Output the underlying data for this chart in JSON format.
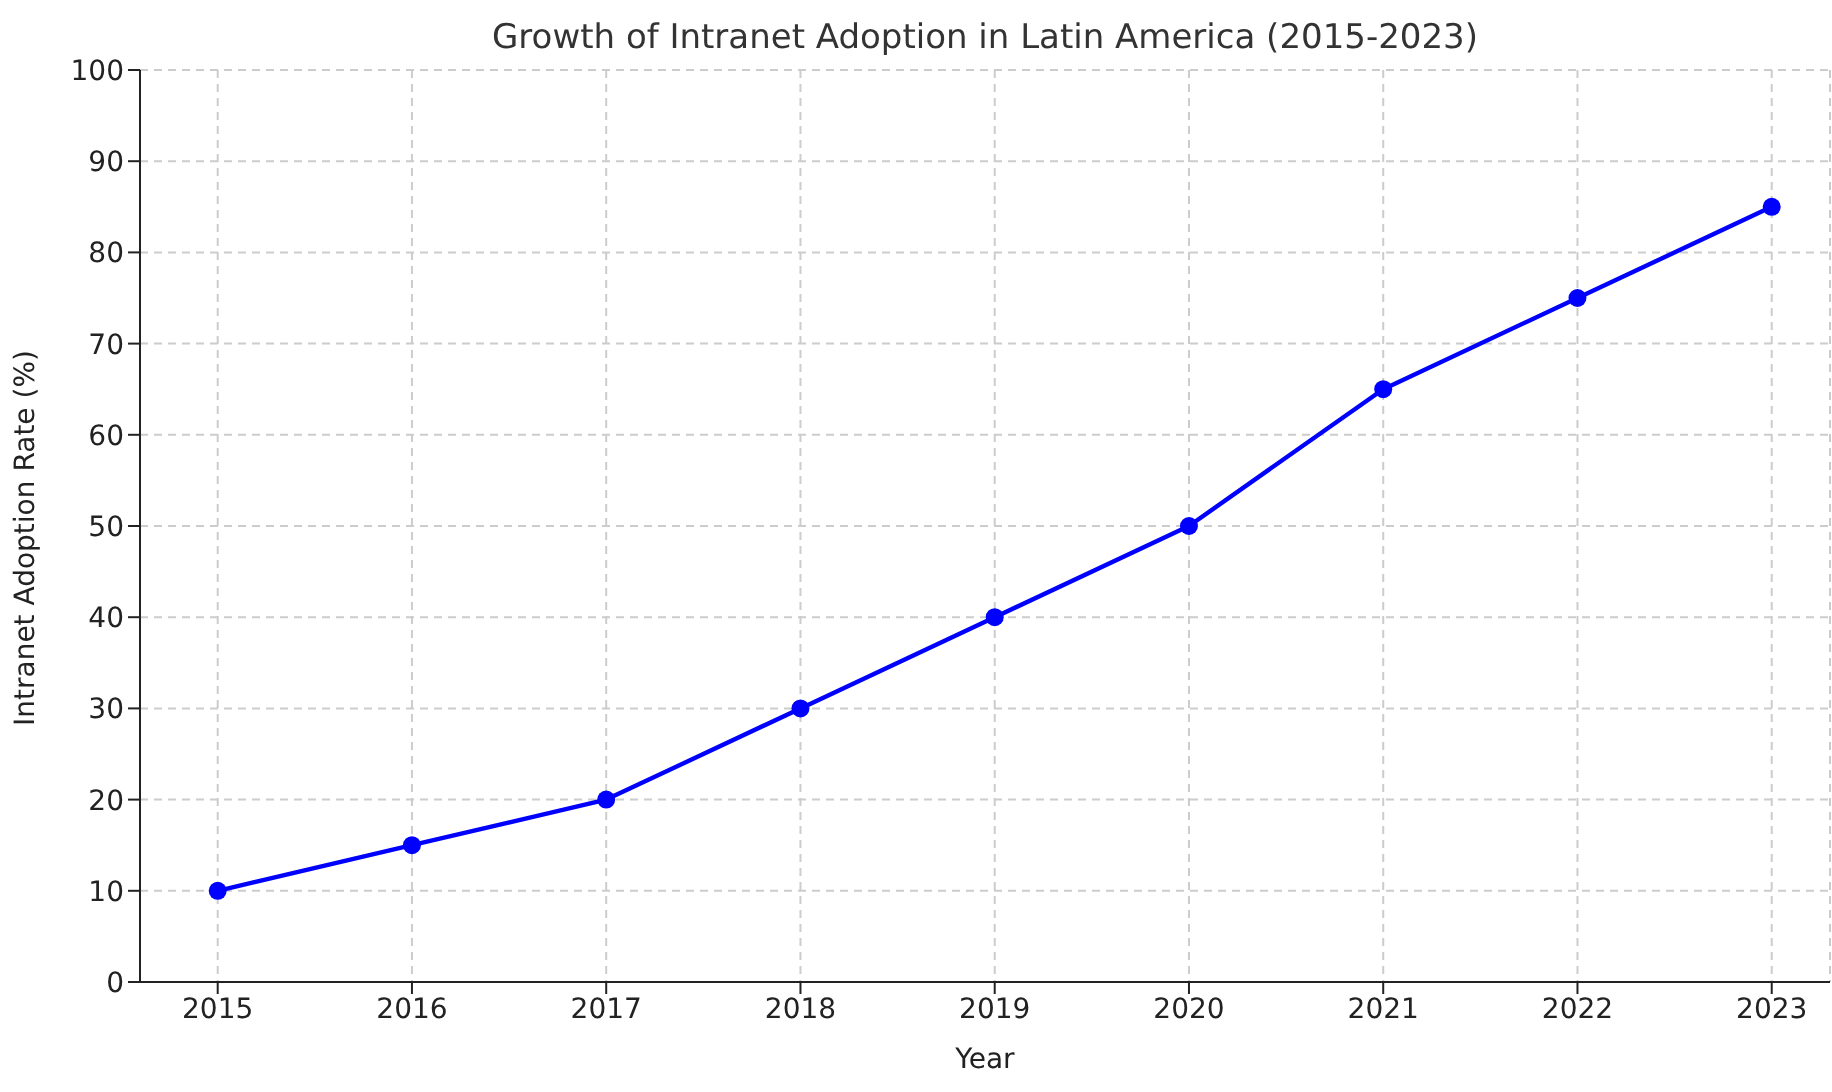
{
  "chart_data": {
    "type": "line",
    "title": "Growth of Intranet Adoption in Latin America (2015-2023)",
    "xlabel": "Year",
    "ylabel": "Intranet Adoption Rate (%)",
    "x": [
      2015,
      2016,
      2017,
      2018,
      2019,
      2020,
      2021,
      2022,
      2023
    ],
    "series": [
      {
        "color": "#0000ff",
        "values": [
          10,
          15,
          20,
          30,
          40,
          50,
          65,
          75,
          85
        ]
      }
    ],
    "xlim": [
      2014.6,
      2023.3
    ],
    "xticks": [
      2015,
      2016,
      2017,
      2018,
      2019,
      2020,
      2021,
      2022,
      2023
    ],
    "ylim": [
      0,
      100
    ],
    "yticks": [
      0,
      10,
      20,
      30,
      40,
      50,
      60,
      70,
      80,
      90,
      100
    ],
    "grid": true,
    "legend": false,
    "marker": "circle",
    "line_style": "solid"
  }
}
